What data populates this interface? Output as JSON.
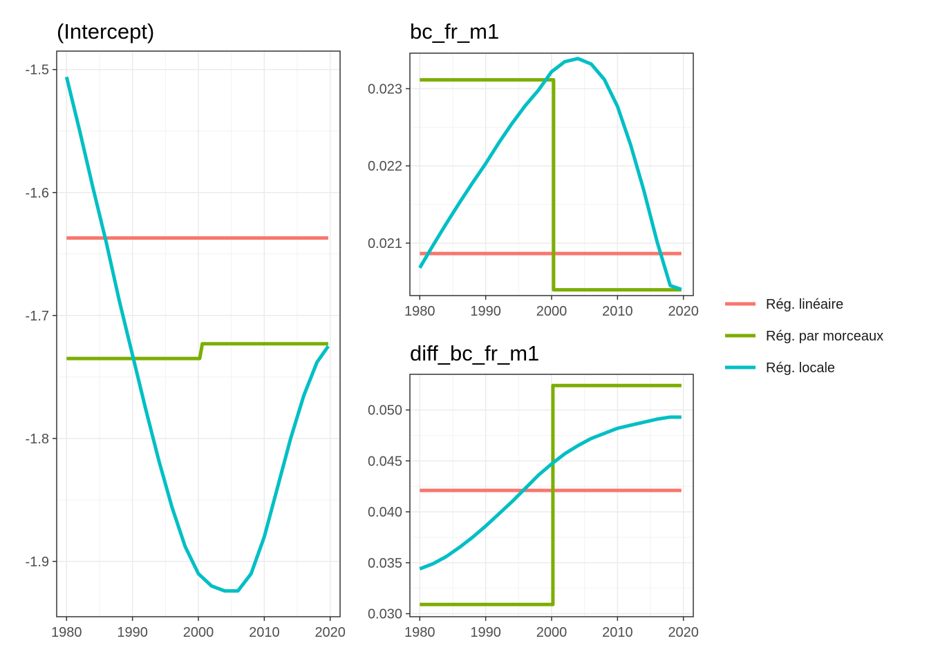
{
  "legend": {
    "items": [
      {
        "key": "lin",
        "label": "Rég. linéaire",
        "color": "#F8766D"
      },
      {
        "key": "pw",
        "label": "Rég. par morceaux",
        "color": "#7CAE00"
      },
      {
        "key": "loc",
        "label": "Rég. locale",
        "color": "#00BFC4"
      }
    ]
  },
  "chart_data": [
    {
      "type": "line",
      "title": "(Intercept)",
      "xlabel": "",
      "ylabel": "",
      "xlim": [
        1978.5,
        2021.5
      ],
      "ylim": [
        -1.945,
        -1.485
      ],
      "xticks": [
        1980,
        1990,
        2000,
        2010,
        2020
      ],
      "yticks": [
        -1.9,
        -1.8,
        -1.7,
        -1.6,
        -1.5
      ],
      "ytick_labels": [
        "-1.9",
        "-1.8",
        "-1.7",
        "-1.6",
        "-1.5"
      ],
      "grid": true,
      "series": [
        {
          "name": "Rég. linéaire",
          "x": [
            1980,
            2019.7
          ],
          "y": [
            -1.637,
            -1.637
          ]
        },
        {
          "name": "Rég. par morceaux",
          "x": [
            1980,
            2000.2,
            2000.6,
            2019.7
          ],
          "y": [
            -1.735,
            -1.735,
            -1.723,
            -1.723
          ]
        },
        {
          "name": "Rég. locale",
          "x": [
            1980,
            1982,
            1984,
            1986,
            1988,
            1990,
            1992,
            1994,
            1996,
            1998,
            2000,
            2002,
            2004,
            2006,
            2008,
            2010,
            2012,
            2014,
            2016,
            2018,
            2019.7
          ],
          "y": [
            -1.506,
            -1.55,
            -1.596,
            -1.64,
            -1.688,
            -1.732,
            -1.776,
            -1.818,
            -1.856,
            -1.888,
            -1.91,
            -1.92,
            -1.924,
            -1.924,
            -1.91,
            -1.88,
            -1.84,
            -1.8,
            -1.765,
            -1.738,
            -1.725
          ]
        }
      ]
    },
    {
      "type": "line",
      "title": "bc_fr_m1",
      "xlabel": "",
      "ylabel": "",
      "xlim": [
        1978.5,
        2021.5
      ],
      "ylim": [
        0.02032,
        0.02346
      ],
      "xticks": [
        1980,
        1990,
        2000,
        2010,
        2020
      ],
      "yticks": [
        0.021,
        0.022,
        0.023
      ],
      "ytick_labels": [
        "0.021",
        "0.022",
        "0.023"
      ],
      "grid": true,
      "series": [
        {
          "name": "Rég. linéaire",
          "x": [
            1980,
            2019.7
          ],
          "y": [
            0.020865,
            0.020865
          ]
        },
        {
          "name": "Rég. par morceaux",
          "x": [
            1980,
            2000.3,
            2000.3,
            2019.7
          ],
          "y": [
            0.023115,
            0.023115,
            0.020395,
            0.020395
          ]
        },
        {
          "name": "Rég. locale",
          "x": [
            1980,
            1982,
            1984,
            1986,
            1988,
            1990,
            1992,
            1994,
            1996,
            1998,
            2000,
            2002,
            2004,
            2006,
            2008,
            2010,
            2012,
            2014,
            2016,
            2018,
            2019.7
          ],
          "y": [
            0.02068,
            0.02097,
            0.02125,
            0.02152,
            0.02178,
            0.02203,
            0.0223,
            0.02255,
            0.02278,
            0.02298,
            0.02322,
            0.02335,
            0.02339,
            0.02332,
            0.02312,
            0.02277,
            0.02227,
            0.02168,
            0.02102,
            0.02045,
            0.0204
          ]
        }
      ]
    },
    {
      "type": "line",
      "title": "diff_bc_fr_m1",
      "xlabel": "",
      "ylabel": "",
      "xlim": [
        1978.5,
        2021.5
      ],
      "ylim": [
        0.0297,
        0.0535
      ],
      "xticks": [
        1980,
        1990,
        2000,
        2010,
        2020
      ],
      "yticks": [
        0.03,
        0.035,
        0.04,
        0.045,
        0.05
      ],
      "ytick_labels": [
        "0.030",
        "0.035",
        "0.040",
        "0.045",
        "0.050"
      ],
      "grid": true,
      "series": [
        {
          "name": "Rég. linéaire",
          "x": [
            1980,
            2019.7
          ],
          "y": [
            0.0421,
            0.0421
          ]
        },
        {
          "name": "Rég. par morceaux",
          "x": [
            1980,
            2000.2,
            2000.2,
            2019.7
          ],
          "y": [
            0.0309,
            0.0309,
            0.0524,
            0.0524
          ]
        },
        {
          "name": "Rég. locale",
          "x": [
            1980,
            1982,
            1984,
            1986,
            1988,
            1990,
            1992,
            1994,
            1996,
            1998,
            2000,
            2002,
            2004,
            2006,
            2008,
            2010,
            2012,
            2014,
            2016,
            2018,
            2019.7
          ],
          "y": [
            0.0344,
            0.0349,
            0.0356,
            0.0365,
            0.0375,
            0.0386,
            0.0398,
            0.041,
            0.0423,
            0.0436,
            0.0447,
            0.0457,
            0.0465,
            0.0472,
            0.0477,
            0.0482,
            0.0485,
            0.0488,
            0.0491,
            0.0493,
            0.0493
          ]
        }
      ]
    }
  ]
}
